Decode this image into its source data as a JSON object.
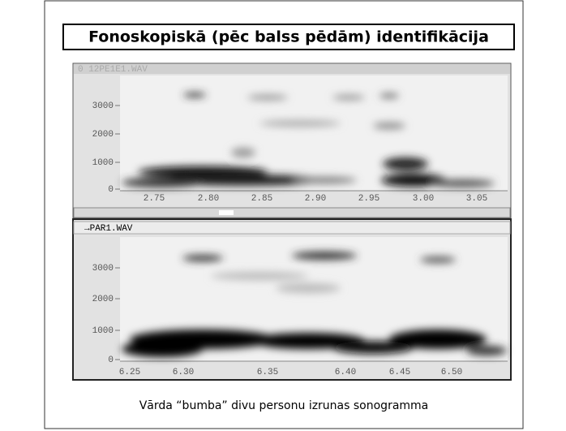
{
  "title": "Fonoskopiskā (pēc balss pēdām) identifikācija",
  "caption": "Vārda “bumba” divu personu izrunas sonogramma",
  "panels": [
    {
      "file": "0 12PE1E1.WAV",
      "y_labels": [
        "3000",
        "2000",
        "1000",
        "0"
      ],
      "x_labels": [
        "2.75",
        "2.80",
        "2.85",
        "2.90",
        "2.95",
        "3.00",
        "3.05"
      ]
    },
    {
      "file": "→PAR1.WAV",
      "y_labels": [
        "3000",
        "2000",
        "1000",
        "0"
      ],
      "x_labels": [
        "6.25",
        "6.30",
        "6.35",
        "6.40",
        "6.45",
        "6.50"
      ]
    }
  ]
}
